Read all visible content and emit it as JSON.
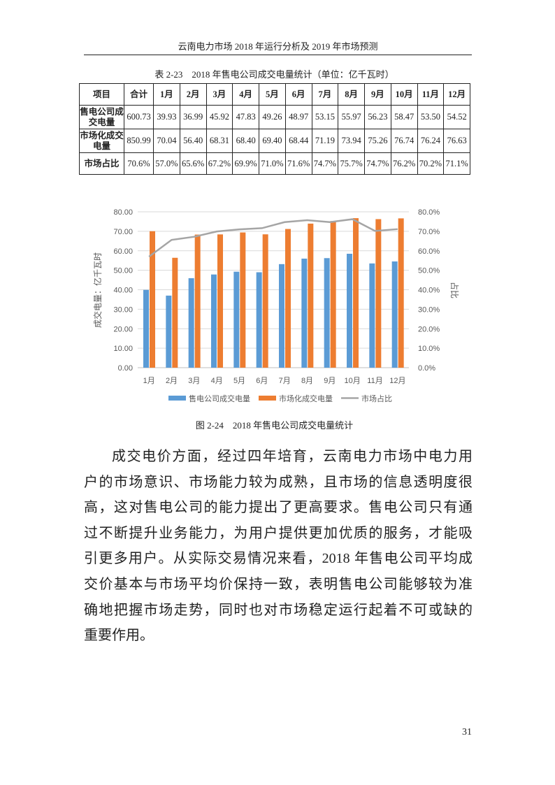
{
  "running_head": "云南电力市场 2018 年运行分析及 2019 年市场预测",
  "table": {
    "caption": "表 2-23　2018 年售电公司成交电量统计（单位：亿千瓦时）",
    "headers": [
      "项目",
      "合计",
      "1月",
      "2月",
      "3月",
      "4月",
      "5月",
      "6月",
      "7月",
      "8月",
      "9月",
      "10月",
      "11月",
      "12月"
    ],
    "rows": [
      {
        "label": "售电公司成交电量",
        "cells": [
          "600.73",
          "39.93",
          "36.99",
          "45.92",
          "47.83",
          "49.26",
          "48.97",
          "53.15",
          "55.97",
          "56.23",
          "58.47",
          "53.50",
          "54.52"
        ]
      },
      {
        "label": "市场化成交电量",
        "cells": [
          "850.99",
          "70.04",
          "56.40",
          "68.31",
          "68.40",
          "69.40",
          "68.44",
          "71.19",
          "73.94",
          "75.26",
          "76.74",
          "76.24",
          "76.63"
        ]
      },
      {
        "label": "市场占比",
        "cells": [
          "70.6%",
          "57.0%",
          "65.6%",
          "67.2%",
          "69.9%",
          "71.0%",
          "71.6%",
          "74.7%",
          "75.7%",
          "74.7%",
          "76.2%",
          "70.2%",
          "71.1%"
        ]
      }
    ]
  },
  "chart_data": {
    "type": "bar",
    "categories": [
      "1月",
      "2月",
      "3月",
      "4月",
      "5月",
      "6月",
      "7月",
      "8月",
      "9月",
      "10月",
      "11月",
      "12月"
    ],
    "ylabel": "成交电量：亿千瓦时",
    "y2label": "占比",
    "ylim": [
      0,
      80
    ],
    "y2lim": [
      0,
      80
    ],
    "yticks": [
      "0.00",
      "10.00",
      "20.00",
      "30.00",
      "40.00",
      "50.00",
      "60.00",
      "70.00",
      "80.00"
    ],
    "y2ticks": [
      "0.0%",
      "10.0%",
      "20.0%",
      "30.0%",
      "40.0%",
      "50.0%",
      "60.0%",
      "70.0%",
      "80.0%"
    ],
    "grid": true,
    "legend_position": "bottom",
    "series": [
      {
        "name": "售电公司成交电量",
        "type": "bar",
        "color": "#5b9bd5",
        "values": [
          39.93,
          36.99,
          45.92,
          47.83,
          49.26,
          48.97,
          53.15,
          55.97,
          56.23,
          58.47,
          53.5,
          54.52
        ]
      },
      {
        "name": "市场化成交电量",
        "type": "bar",
        "color": "#ed7d31",
        "values": [
          70.04,
          56.4,
          68.31,
          68.4,
          69.4,
          68.44,
          71.19,
          73.94,
          75.26,
          76.74,
          76.24,
          76.63
        ]
      },
      {
        "name": "市场占比",
        "type": "line",
        "axis": "right",
        "color": "#a5a5a5",
        "values": [
          57.0,
          65.6,
          67.2,
          69.9,
          71.0,
          71.6,
          74.7,
          75.7,
          74.7,
          76.2,
          70.2,
          71.1
        ]
      }
    ]
  },
  "figure_caption": "图 2-24　2018 年售电公司成交电量统计",
  "paragraph_lines": [
    "成交电价方面，经过四年培育，云南电力市场中电力用",
    "户的市场意识、市场能力较为成熟，且市场的信息透明度很",
    "高，这对售电公司的能力提出了更高要求。售电公司只有通",
    "过不断提升业务能力，为用户提供更加优质的服务，才能吸",
    "引更多用户。从实际交易情况来看，2018 年售电公司平均成",
    "交价基本与市场平均价保持一致，表明售电公司能够较为准",
    "确地把握市场走势，同时也对市场稳定运行起着不可或缺的",
    "重要作用。"
  ],
  "page_number": "31"
}
